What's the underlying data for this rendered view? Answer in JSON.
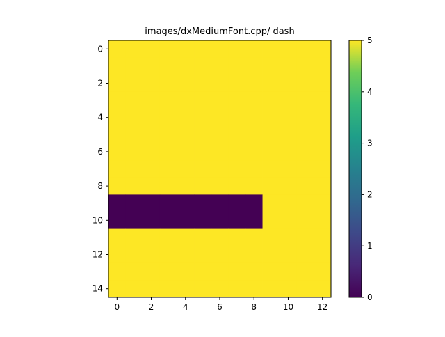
{
  "chart_data": {
    "type": "heatmap",
    "title": "images/dxMediumFont.cpp/ dash",
    "xlabel": "",
    "ylabel": "",
    "rows": 15,
    "cols": 13,
    "xlim": [
      -0.5,
      12.5
    ],
    "ylim": [
      14.5,
      -0.5
    ],
    "x_ticks": [
      0,
      2,
      4,
      6,
      8,
      10,
      12
    ],
    "y_ticks": [
      0,
      2,
      4,
      6,
      8,
      10,
      12,
      14
    ],
    "colormap": "viridis",
    "vmin": 0,
    "vmax": 5,
    "colorbar_ticks": [
      0,
      1,
      2,
      3,
      4,
      5
    ],
    "values": [
      [
        5,
        5,
        5,
        5,
        5,
        5,
        5,
        5,
        5,
        5,
        5,
        5,
        5
      ],
      [
        5,
        5,
        5,
        5,
        5,
        5,
        5,
        5,
        5,
        5,
        5,
        5,
        5
      ],
      [
        5,
        5,
        5,
        5,
        5,
        5,
        5,
        5,
        5,
        5,
        5,
        5,
        5
      ],
      [
        5,
        5,
        5,
        5,
        5,
        5,
        5,
        5,
        5,
        5,
        5,
        5,
        5
      ],
      [
        5,
        5,
        5,
        5,
        5,
        5,
        5,
        5,
        5,
        5,
        5,
        5,
        5
      ],
      [
        5,
        5,
        5,
        5,
        5,
        5,
        5,
        5,
        5,
        5,
        5,
        5,
        5
      ],
      [
        5,
        5,
        5,
        5,
        5,
        5,
        5,
        5,
        5,
        5,
        5,
        5,
        5
      ],
      [
        5,
        5,
        5,
        5,
        5,
        5,
        5,
        5,
        5,
        5,
        5,
        5,
        5
      ],
      [
        5,
        5,
        5,
        5,
        5,
        5,
        5,
        5,
        5,
        5,
        5,
        5,
        5
      ],
      [
        0,
        0,
        0,
        0,
        0,
        0,
        0,
        0,
        0,
        5,
        5,
        5,
        5
      ],
      [
        0,
        0,
        0,
        0,
        0,
        0,
        0,
        0,
        0,
        5,
        5,
        5,
        5
      ],
      [
        5,
        5,
        5,
        5,
        5,
        5,
        5,
        5,
        5,
        5,
        5,
        5,
        5
      ],
      [
        5,
        5,
        5,
        5,
        5,
        5,
        5,
        5,
        5,
        5,
        5,
        5,
        5
      ],
      [
        5,
        5,
        5,
        5,
        5,
        5,
        5,
        5,
        5,
        5,
        5,
        5,
        5
      ],
      [
        5,
        5,
        5,
        5,
        5,
        5,
        5,
        5,
        5,
        5,
        5,
        5,
        5
      ]
    ],
    "colors": {
      "low": "#440154",
      "high": "#fde725"
    }
  }
}
